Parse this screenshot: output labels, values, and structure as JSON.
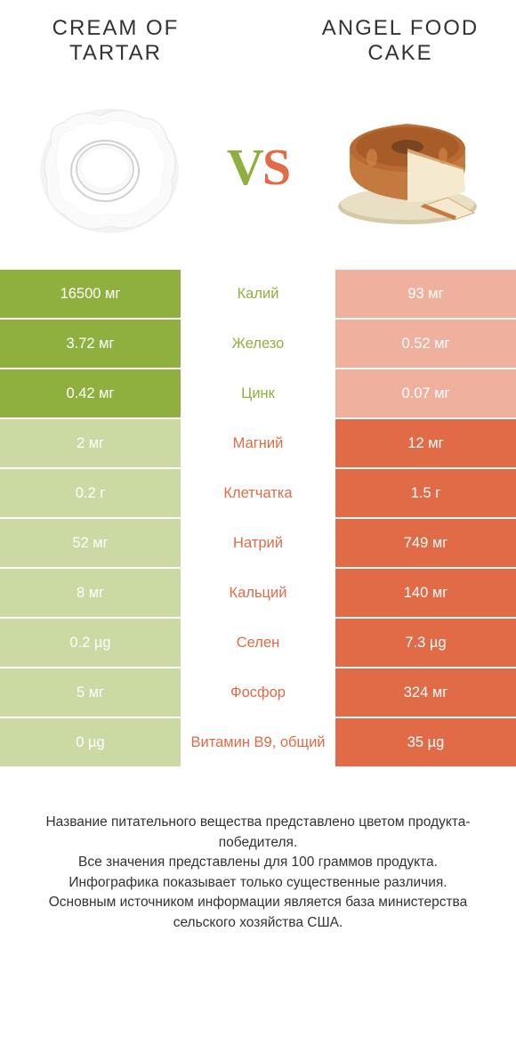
{
  "productLeft": {
    "title": "CREAM OF TARTAR"
  },
  "productRight": {
    "title": "ANGEL FOOD CAKE"
  },
  "vs": {
    "v": "V",
    "s": "S"
  },
  "colors": {
    "greenWin": "#8fb03e",
    "greenLose": "#cbd9a3",
    "orangeWin": "#e16a47",
    "orangeLose": "#efb09d",
    "textWhite": "#ffffff"
  },
  "rows": [
    {
      "nutrient": "Калий",
      "left": "16500 мг",
      "right": "93 мг",
      "winner": "left"
    },
    {
      "nutrient": "Железо",
      "left": "3.72 мг",
      "right": "0.52 мг",
      "winner": "left"
    },
    {
      "nutrient": "Цинк",
      "left": "0.42 мг",
      "right": "0.07 мг",
      "winner": "left"
    },
    {
      "nutrient": "Магний",
      "left": "2 мг",
      "right": "12 мг",
      "winner": "right"
    },
    {
      "nutrient": "Клетчатка",
      "left": "0.2 г",
      "right": "1.5 г",
      "winner": "right"
    },
    {
      "nutrient": "Натрий",
      "left": "52 мг",
      "right": "749 мг",
      "winner": "right"
    },
    {
      "nutrient": "Кальций",
      "left": "8 мг",
      "right": "140 мг",
      "winner": "right"
    },
    {
      "nutrient": "Селен",
      "left": "0.2 µg",
      "right": "7.3 µg",
      "winner": "right"
    },
    {
      "nutrient": "Фосфор",
      "left": "5 мг",
      "right": "324 мг",
      "winner": "right"
    },
    {
      "nutrient": "Витамин B9, общий",
      "left": "0 µg",
      "right": "35 µg",
      "winner": "right"
    }
  ],
  "footer": {
    "line1": "Название питательного вещества представлено цветом продукта-победителя.",
    "line2": "Все значения представлены для 100 граммов продукта.",
    "line3": "Инфографика показывает только существенные различия.",
    "line4": "Основным источником информации является база министерства сельского хозяйства США."
  }
}
